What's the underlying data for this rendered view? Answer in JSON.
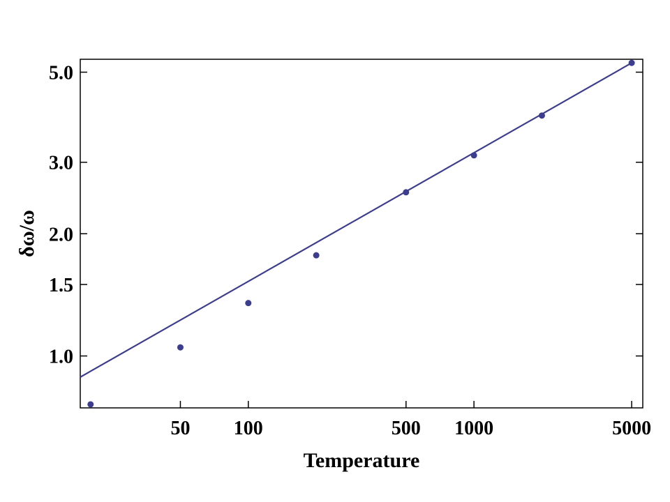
{
  "chart_data": {
    "type": "scatter",
    "xlabel": "Temperature",
    "ylabel": "δω/ω",
    "x_scale": "log",
    "y_scale": "log",
    "xlim": [
      18,
      5600
    ],
    "ylim": [
      0.745,
      5.38
    ],
    "x_ticks": [
      {
        "value": 50,
        "label": "50"
      },
      {
        "value": 100,
        "label": "100"
      },
      {
        "value": 500,
        "label": "500"
      },
      {
        "value": 1000,
        "label": "1000"
      },
      {
        "value": 5000,
        "label": "5000"
      }
    ],
    "y_ticks": [
      {
        "value": 1.0,
        "label": "1.0"
      },
      {
        "value": 1.5,
        "label": "1.5"
      },
      {
        "value": 2.0,
        "label": "2.0"
      },
      {
        "value": 3.0,
        "label": "3.0"
      },
      {
        "value": 5.0,
        "label": "5.0"
      }
    ],
    "series": [
      {
        "marker": "point",
        "color": "#3d3d8f",
        "points": [
          {
            "x": 20,
            "y": 0.76
          },
          {
            "x": 50,
            "y": 1.05
          },
          {
            "x": 100,
            "y": 1.35
          },
          {
            "x": 200,
            "y": 1.77
          },
          {
            "x": 500,
            "y": 2.53
          },
          {
            "x": 1000,
            "y": 3.12
          },
          {
            "x": 2000,
            "y": 3.91
          },
          {
            "x": 5000,
            "y": 5.27
          }
        ]
      },
      {
        "marker": "line",
        "color": "#3d3d8f",
        "points": [
          {
            "x": 18,
            "y": 0.887
          },
          {
            "x": 5000,
            "y": 5.27
          }
        ]
      }
    ],
    "grid": false,
    "frame": true
  }
}
